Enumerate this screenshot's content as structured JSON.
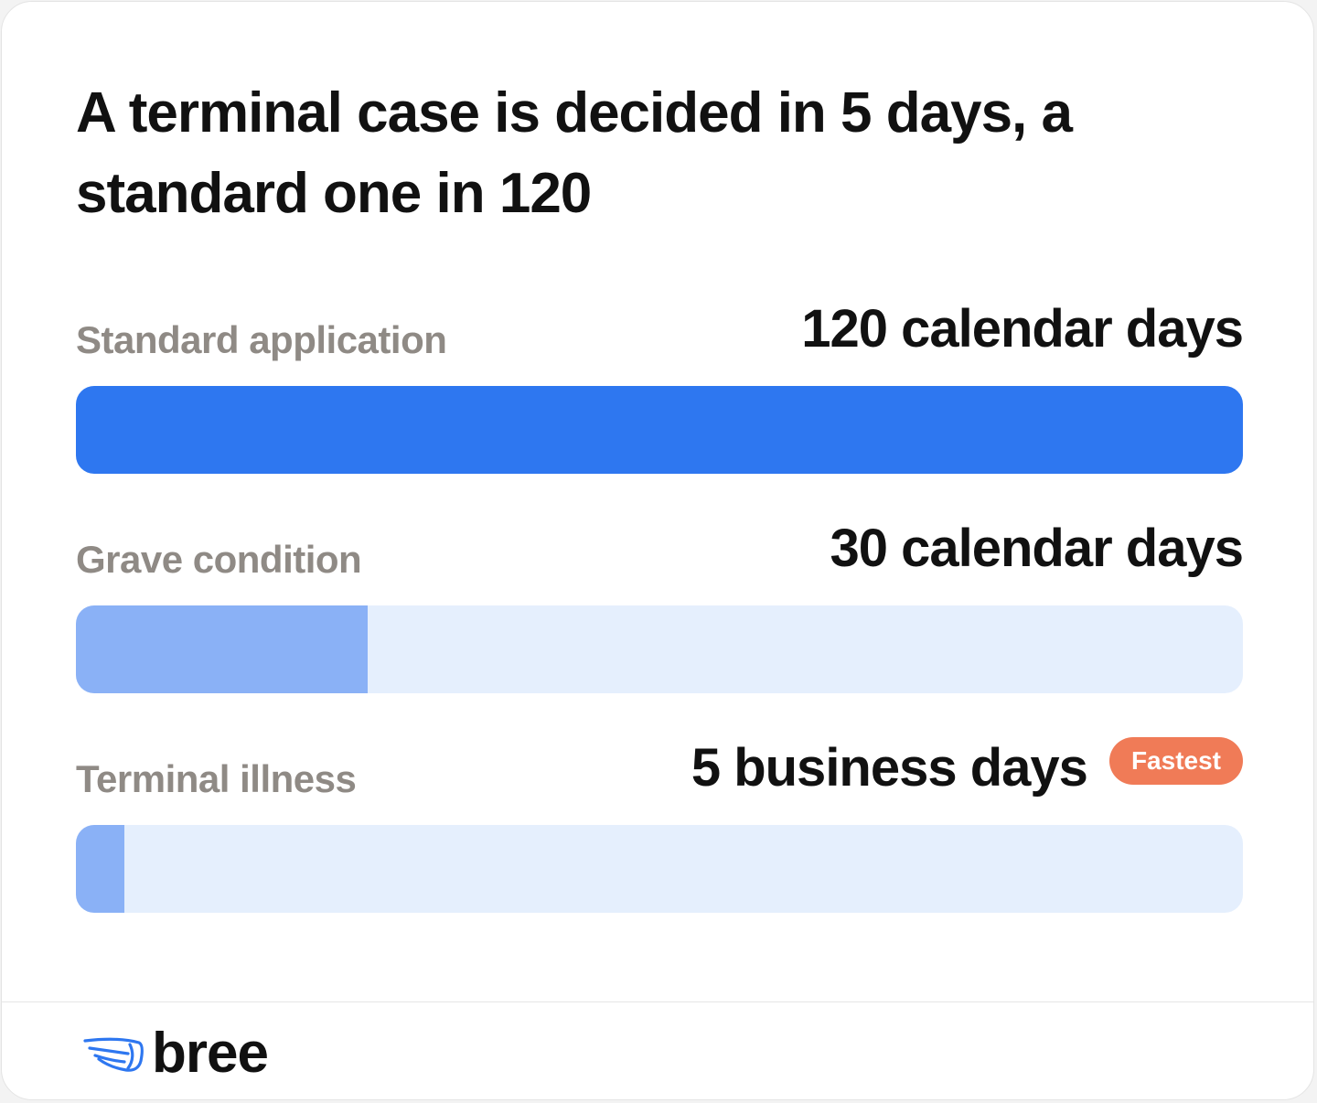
{
  "title": "A terminal case is decided in 5 days, a standard one in 120",
  "chart_data": {
    "type": "bar",
    "orientation": "horizontal",
    "categories": [
      "Standard application",
      "Grave condition",
      "Terminal illness"
    ],
    "values": [
      120,
      30,
      5
    ],
    "value_labels": [
      "120 calendar days",
      "30 calendar days",
      "5 business days"
    ],
    "max": 120,
    "badges": [
      "",
      "",
      "Fastest"
    ]
  },
  "colors": {
    "primary_bar": "#2e77f0",
    "secondary_bar": "#8ab1f6",
    "track": "#e5effd",
    "badge": "#f07b57"
  },
  "brand": {
    "logo_text": "bree",
    "icon": "wing-icon"
  }
}
